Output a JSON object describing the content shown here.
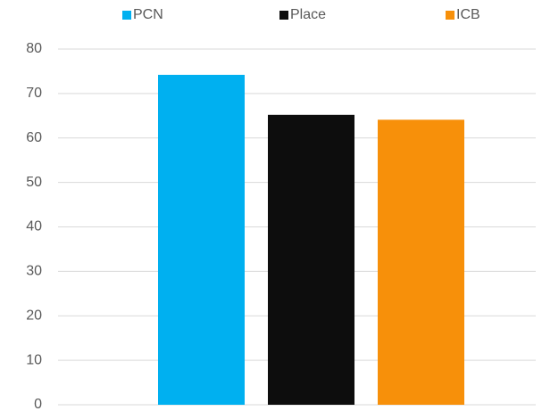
{
  "chart_data": {
    "type": "bar",
    "categories": [
      null
    ],
    "series": [
      {
        "name": "PCN",
        "color": "#00b0f0",
        "values": [
          74.2
        ]
      },
      {
        "name": "Place",
        "color": "#0d0d0d",
        "values": [
          65.2
        ]
      },
      {
        "name": "ICB",
        "color": "#f7900a",
        "values": [
          64.1
        ]
      }
    ],
    "ylim": [
      0,
      80
    ],
    "yticks": [
      0,
      10,
      20,
      30,
      40,
      50,
      60,
      70,
      80
    ],
    "grid": true,
    "legend": "top"
  }
}
